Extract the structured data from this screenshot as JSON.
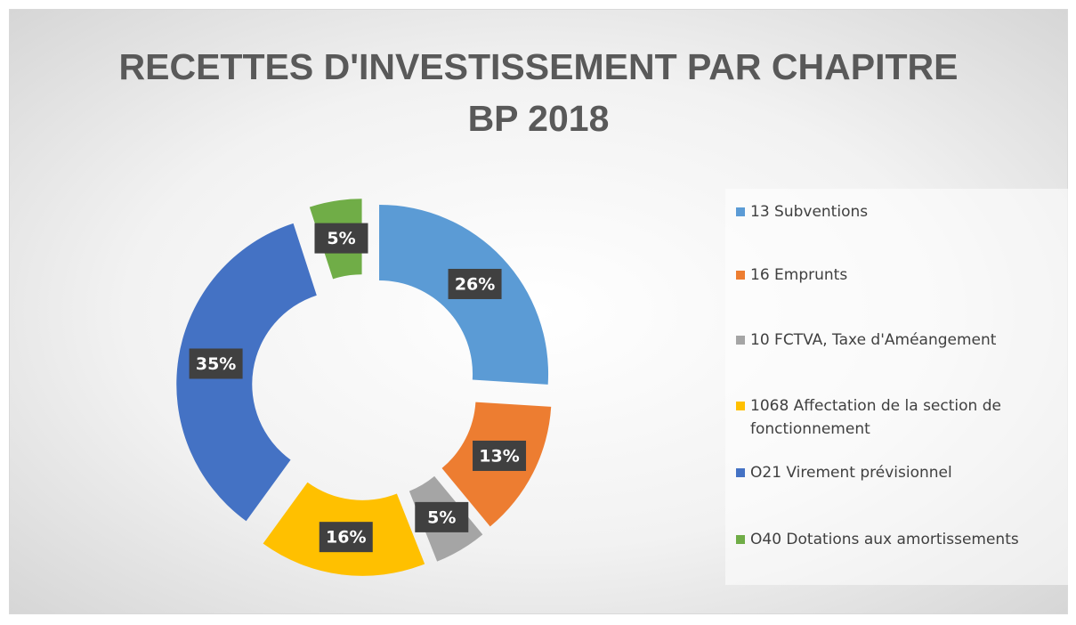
{
  "chart_data": {
    "type": "donut",
    "title": "RECETTES D'INVESTISSEMENT PAR CHAPITRE BP 2018",
    "categories": [
      "13 Subventions",
      "16 Emprunts",
      "10 FCTVA, Taxe d'Améangement",
      "1068 Affectation de la section de fonctionnement",
      "O21 Virement prévisionnel",
      "O40 Dotations aux amortissements"
    ],
    "values": [
      26,
      13,
      5,
      16,
      35,
      5
    ],
    "value_labels": [
      "26%",
      "13%",
      "5%",
      "16%",
      "35%",
      "5%"
    ],
    "colors": [
      "#5b9bd5",
      "#ed7d31",
      "#a5a5a5",
      "#ffc000",
      "#4472c4",
      "#70ad47"
    ],
    "legend": "right"
  }
}
